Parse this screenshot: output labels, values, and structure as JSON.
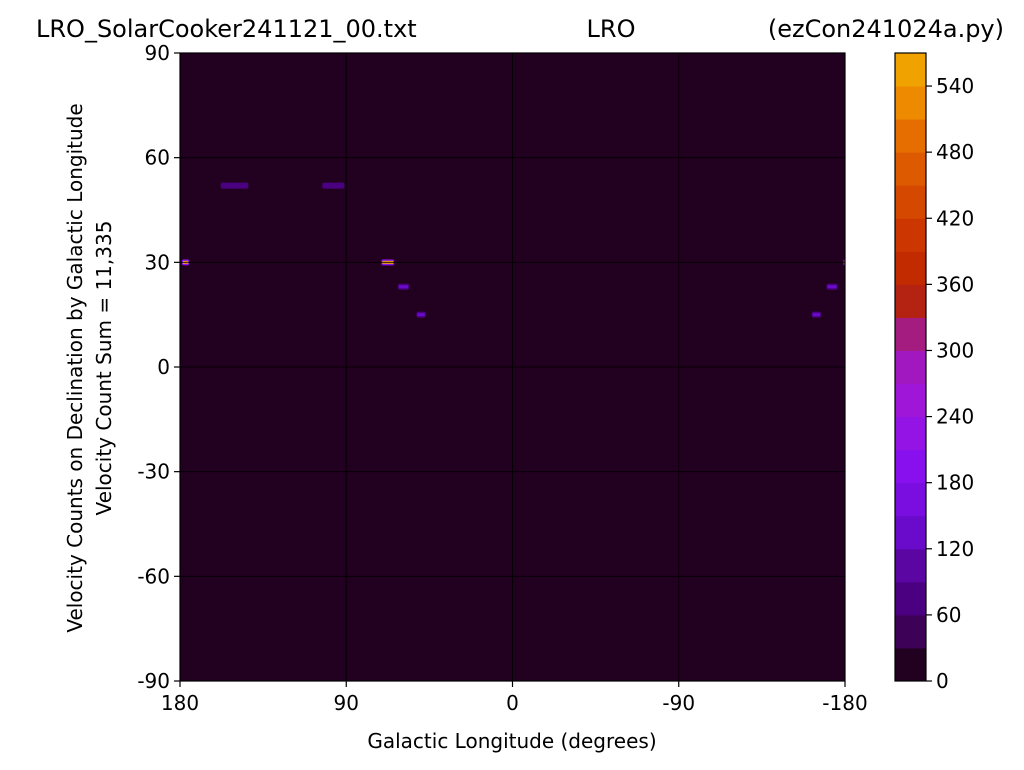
{
  "chart_data": {
    "type": "heatmap",
    "title_left": "LRO_SolarCooker241121_00.txt",
    "title_center": "LRO",
    "title_right": "(ezCon241024a.py)",
    "xlabel": "Galactic Longitude (degrees)",
    "ylabel_line1": "Velocity Counts on Declination by Galactic Longitude",
    "ylabel_line2": "Velocity Count Sum = 11,335",
    "xlim": [
      180,
      -180
    ],
    "ylim": [
      -90,
      90
    ],
    "x_ticks": [
      {
        "value": 180,
        "label": "180"
      },
      {
        "value": 90,
        "label": "90"
      },
      {
        "value": 0,
        "label": "0"
      },
      {
        "value": -90,
        "label": "-90"
      },
      {
        "value": -180,
        "label": "-180"
      }
    ],
    "y_ticks": [
      {
        "value": 90,
        "label": "90"
      },
      {
        "value": 60,
        "label": "60"
      },
      {
        "value": 30,
        "label": "30"
      },
      {
        "value": 0,
        "label": "0"
      },
      {
        "value": -30,
        "label": "-30"
      },
      {
        "value": -60,
        "label": "-60"
      },
      {
        "value": -90,
        "label": "-90"
      }
    ],
    "gridlines_x": [
      90,
      0,
      -90
    ],
    "gridlines_y": [
      60,
      30,
      0,
      -30,
      -60
    ],
    "grid": true,
    "background_value": 0,
    "colorbar": {
      "range": [
        0,
        570
      ],
      "level_step": 30,
      "ticks": [
        {
          "value": 0,
          "label": "0"
        },
        {
          "value": 60,
          "label": "60"
        },
        {
          "value": 120,
          "label": "120"
        },
        {
          "value": 180,
          "label": "180"
        },
        {
          "value": 240,
          "label": "240"
        },
        {
          "value": 300,
          "label": "300"
        },
        {
          "value": 360,
          "label": "360"
        },
        {
          "value": 420,
          "label": "420"
        },
        {
          "value": 480,
          "label": "480"
        },
        {
          "value": 540,
          "label": "540"
        }
      ],
      "colors": [
        "#22001f",
        "#3d0157",
        "#4b0082",
        "#5b06a3",
        "#6a0bcc",
        "#7a0ee0",
        "#8810ee",
        "#9414e6",
        "#a016d8",
        "#a218c0",
        "#a51c80",
        "#b42212",
        "#c22a00",
        "#cc3600",
        "#d54800",
        "#dd5a00",
        "#e66e00",
        "#ed8a00",
        "#f0a200",
        "#f4c000",
        "#fae400"
      ]
    },
    "hotspots": [
      {
        "x_from": 179,
        "x_to": 175,
        "y": 30,
        "value": 540
      },
      {
        "x_from": 158,
        "x_to": 143,
        "y": 52,
        "value": 75
      },
      {
        "x_from": 103,
        "x_to": 91,
        "y": 52,
        "value": 75
      },
      {
        "x_from": 71,
        "x_to": 64,
        "y": 30,
        "value": 550
      },
      {
        "x_from": 62,
        "x_to": 56,
        "y": 23,
        "value": 130
      },
      {
        "x_from": 52,
        "x_to": 47,
        "y": 15,
        "value": 140
      },
      {
        "x_from": -162,
        "x_to": -167,
        "y": 15,
        "value": 130
      },
      {
        "x_from": -170,
        "x_to": -176,
        "y": 23,
        "value": 120
      },
      {
        "x_from": -179,
        "x_to": -180,
        "y": 30,
        "value": 500
      }
    ]
  }
}
